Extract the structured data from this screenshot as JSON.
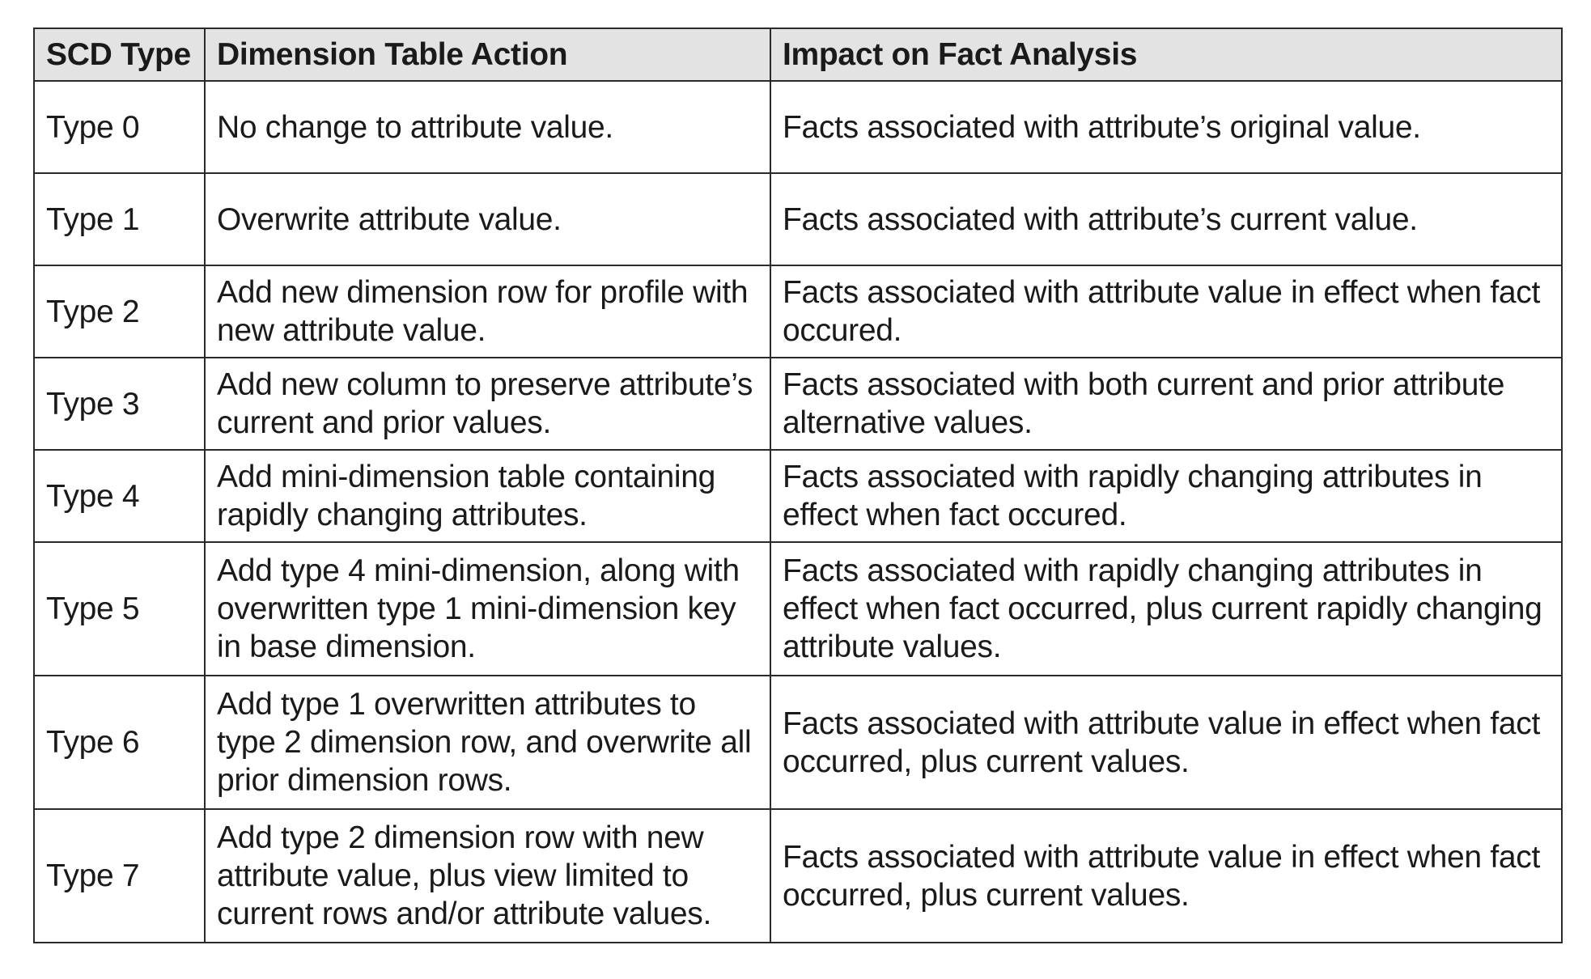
{
  "table": {
    "headers": [
      "SCD Type",
      "Dimension Table Action",
      "Impact on Fact Analysis"
    ],
    "rows": [
      {
        "type": "Type 0",
        "action": "No change to attribute value.",
        "impact": "Facts associated with attribute’s original value."
      },
      {
        "type": "Type 1",
        "action": "Overwrite attribute value.",
        "impact": "Facts associated with attribute’s current value."
      },
      {
        "type": "Type 2",
        "action": "Add new dimension row for profile with new attribute value.",
        "impact": "Facts associated with attribute value in effect when fact occured."
      },
      {
        "type": "Type 3",
        "action": "Add new column to preserve attribute’s current and prior values.",
        "impact": "Facts associated with both current and prior attribute alternative values."
      },
      {
        "type": "Type 4",
        "action": "Add mini-dimension table containing rapidly changing attributes.",
        "impact": "Facts associated with rapidly changing attributes in effect when fact occured."
      },
      {
        "type": "Type 5",
        "action": "Add type 4 mini-dimension, along with overwritten type 1 mini-dimension key in base dimension.",
        "impact": "Facts associated with rapidly changing attributes in effect when fact occurred, plus current rapidly changing attribute values."
      },
      {
        "type": "Type 6",
        "action": "Add type 1 overwritten attributes to type 2 dimension row, and overwrite all prior dimension rows.",
        "impact": "Facts associated with attribute value in effect when fact occurred, plus current values."
      },
      {
        "type": "Type 7",
        "action": "Add type 2 dimension row with new attribute value, plus view limited to current rows and/or attribute values.",
        "impact": "Facts associated with attribute value in effect when fact occurred, plus current values."
      }
    ]
  }
}
